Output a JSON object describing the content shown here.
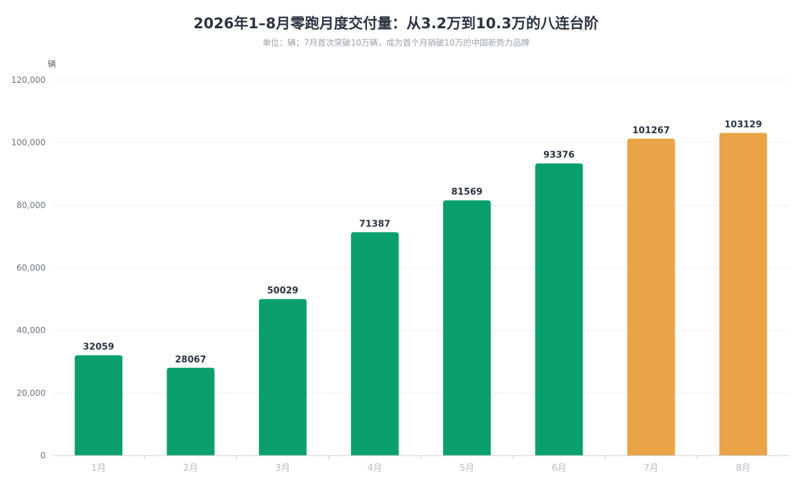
{
  "chart_data": {
    "type": "bar",
    "title": "2026年1–8月零跑月度交付量：从3.2万到10.3万的八连台阶",
    "subtitle": "单位：辆；7月首次突破10万辆，成为首个月销破10万的中国新势力品牌",
    "ylabel": "辆",
    "xlabel": "",
    "ylim": [
      0,
      120000
    ],
    "yticks": [
      0,
      20000,
      40000,
      60000,
      80000,
      100000,
      120000
    ],
    "ytick_labels": [
      "0",
      "20,000",
      "40,000",
      "60,000",
      "80,000",
      "100,000",
      "120,000"
    ],
    "categories": [
      "1月",
      "2月",
      "3月",
      "4月",
      "5月",
      "6月",
      "7月",
      "8月"
    ],
    "values": [
      32059,
      28067,
      50029,
      71387,
      81569,
      93376,
      101267,
      103129
    ],
    "bar_colors": [
      "#0aa06e",
      "#0aa06e",
      "#0aa06e",
      "#0aa06e",
      "#0aa06e",
      "#0aa06e",
      "#e8a446",
      "#e8a446"
    ],
    "grid": true,
    "legend": "none"
  }
}
